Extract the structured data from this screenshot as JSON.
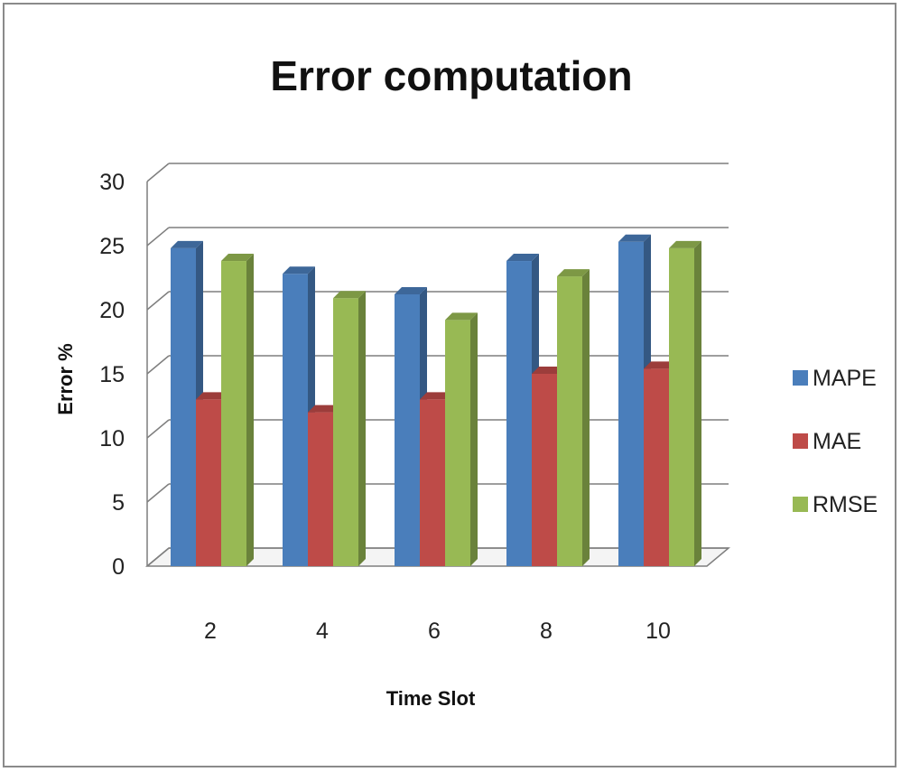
{
  "chart_data": {
    "type": "bar",
    "title": "Error computation",
    "xlabel": "Time Slot",
    "ylabel": "Error %",
    "categories": [
      "2",
      "4",
      "6",
      "8",
      "10"
    ],
    "ylim": [
      0,
      30
    ],
    "yticks": [
      "0",
      "5",
      "10",
      "15",
      "20",
      "25",
      "30"
    ],
    "grid": true,
    "legend_position": "right",
    "three_d": true,
    "series": [
      {
        "name": "MAPE",
        "color": "#4a7ebb",
        "values": [
          24.8,
          22.8,
          21.2,
          23.8,
          25.3
        ]
      },
      {
        "name": "MAE",
        "color": "#be4b48",
        "values": [
          13,
          12,
          13,
          15,
          15.4
        ]
      },
      {
        "name": "RMSE",
        "color": "#98b954",
        "values": [
          23.8,
          20.9,
          19.2,
          22.6,
          24.8
        ]
      }
    ]
  }
}
